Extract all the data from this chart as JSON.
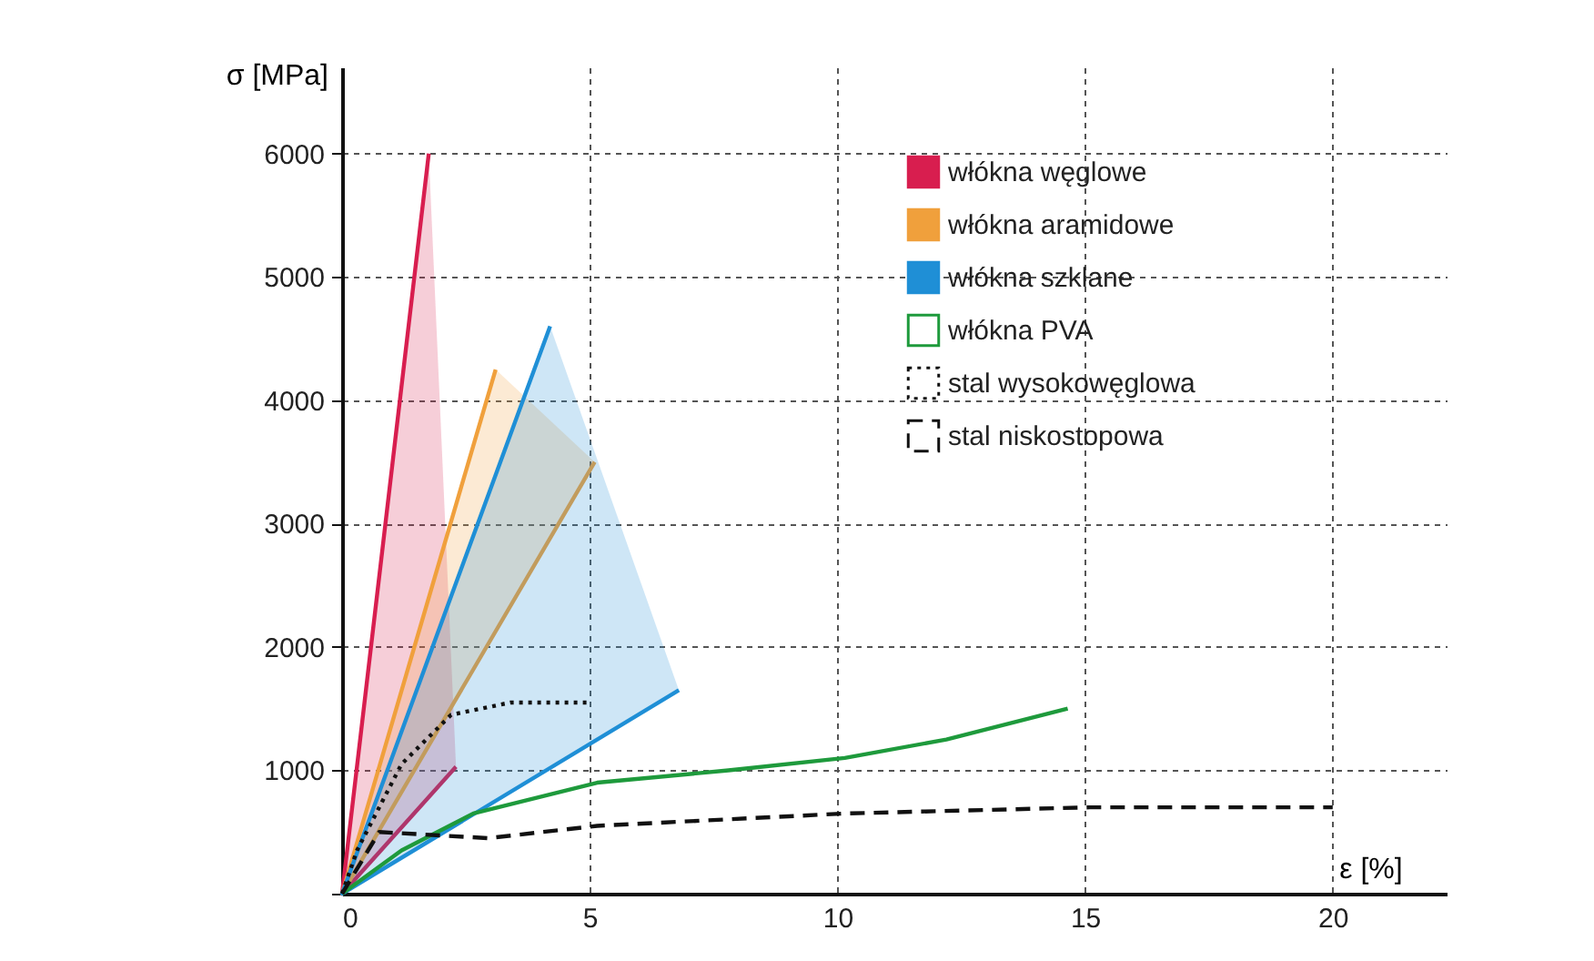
{
  "chart_data": {
    "type": "line",
    "xlabel": "ε [%]",
    "ylabel": "σ [MPa]",
    "xlim": [
      0,
      22.3
    ],
    "ylim": [
      0,
      6700
    ],
    "xticks": [
      0,
      5,
      10,
      15,
      20
    ],
    "yticks": [
      {
        "value": 0,
        "label": null
      },
      1000,
      2000,
      3000,
      4000,
      5000,
      6000
    ],
    "grid": true,
    "legend": "top right",
    "series": [
      {
        "name": "włókna węglowe",
        "type": "area",
        "color": "#d81e4f",
        "x": [
          1.75,
          0,
          2.3
        ],
        "values": [
          6000,
          0,
          1030
        ]
      },
      {
        "name": "włókna aramidowe",
        "type": "area",
        "color": "#f0a03c",
        "x": [
          3.1,
          0,
          5.1
        ],
        "values": [
          4250,
          0,
          3500
        ]
      },
      {
        "name": "włókna szklane",
        "type": "area",
        "color": "#1f8fd6",
        "x": [
          4.2,
          0,
          6.8
        ],
        "values": [
          4600,
          0,
          1650
        ]
      },
      {
        "name": "włókna PVA",
        "type": "line",
        "color": "#1e9a3c",
        "line_style": "solid",
        "x": [
          0,
          1.2,
          2.65,
          5.15,
          7.8,
          10.15,
          12.2,
          14.65
        ],
        "values": [
          0,
          350,
          650,
          900,
          1000,
          1100,
          1250,
          1500
        ]
      },
      {
        "name": "stal wysokowęglowa",
        "type": "line",
        "color": "#111111",
        "line_style": "dotted",
        "x": [
          0,
          0.3,
          1.2,
          2.2,
          3.4,
          5.0
        ],
        "values": [
          0,
          350,
          1050,
          1450,
          1550,
          1550
        ]
      },
      {
        "name": "stal niskostopowa",
        "type": "line",
        "color": "#111111",
        "line_style": "dashed",
        "x": [
          0,
          0.75,
          2.95,
          5.15,
          10.15,
          15.1,
          20
        ],
        "values": [
          0,
          500,
          450,
          550,
          650,
          700,
          700
        ]
      }
    ]
  }
}
